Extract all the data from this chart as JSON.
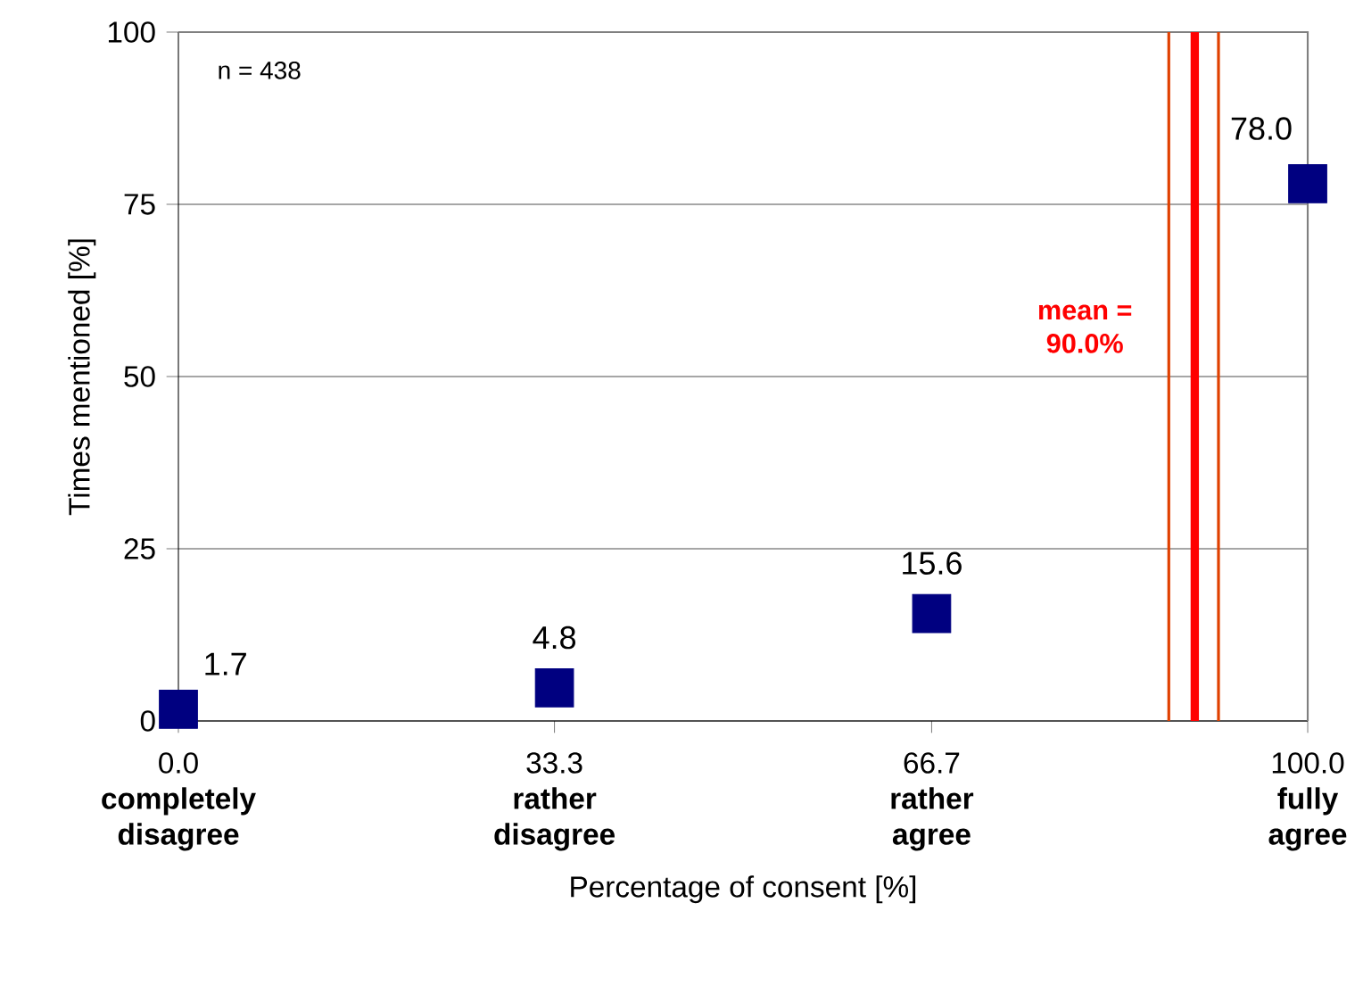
{
  "chart_data": {
    "type": "scatter",
    "xlabel": "Percentage of consent [%]",
    "ylabel": "Times mentioned [%]",
    "x": [
      0.0,
      33.3,
      66.7,
      100.0
    ],
    "series": [
      {
        "color": "#000080",
        "values": [
          1.7,
          4.8,
          15.6,
          78.0
        ],
        "value_labels": [
          "1.7",
          "4.8",
          "15.6",
          "78.0"
        ]
      }
    ],
    "marker": "square",
    "xlim": [
      0,
      100
    ],
    "ylim": [
      0,
      100
    ],
    "xticks": [
      {
        "value": 0,
        "label": "0.0\n**completely**\n**disagree**"
      },
      {
        "value": 33.3,
        "label": "33.3\n**rather**\n**disagree**"
      },
      {
        "value": 66.7,
        "label": "66.7\n**rather**\n**agree**"
      },
      {
        "value": 100,
        "label": "100.0\n**fully**\n**agree**"
      }
    ],
    "yticks": [
      0,
      25,
      50,
      75,
      100
    ],
    "grid": "y",
    "ref_lines": [
      {
        "axis": "x",
        "value": 90.0,
        "label": "mean =\n90.0%",
        "color": "#ff0000"
      },
      {
        "axis": "x",
        "value": 87.7,
        "color": "#e04000"
      },
      {
        "axis": "x",
        "value": 92.1,
        "color": "#e04000"
      }
    ],
    "annotations": [
      "n = 438"
    ]
  }
}
